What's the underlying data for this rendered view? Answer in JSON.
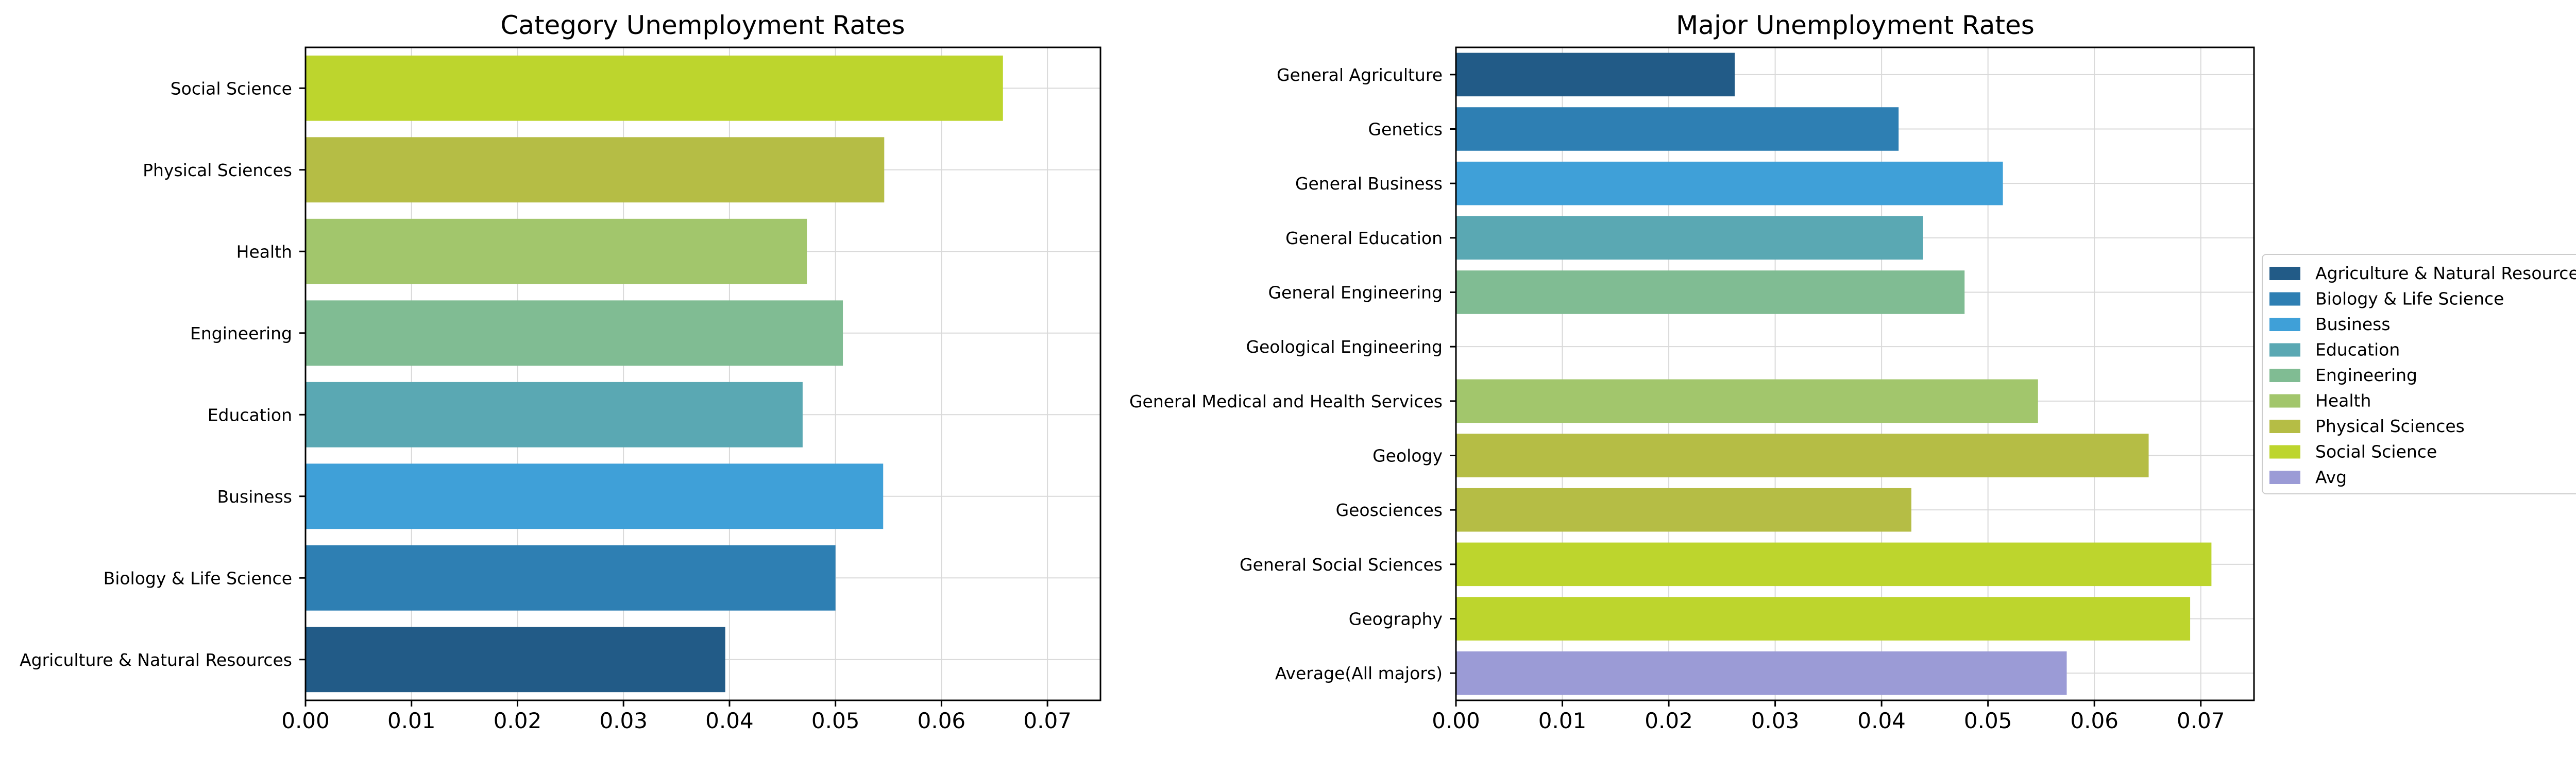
{
  "chart_data": [
    {
      "type": "bar",
      "orientation": "horizontal",
      "title": "Category Unemployment Rates",
      "xlabel": "",
      "ylabel": "",
      "xlim": [
        0,
        0.075
      ],
      "xticks": [
        "0.00",
        "0.01",
        "0.02",
        "0.03",
        "0.04",
        "0.05",
        "0.06",
        "0.07"
      ],
      "grid": true,
      "categories": [
        "Agriculture & Natural Resources",
        "Biology & Life Science",
        "Business",
        "Education",
        "Engineering",
        "Health",
        "Physical Sciences",
        "Social Science"
      ],
      "values": [
        0.0396,
        0.05,
        0.0545,
        0.0469,
        0.0507,
        0.0473,
        0.0546,
        0.0658
      ],
      "colors": [
        "#225b87",
        "#2e7fb3",
        "#3fa0d8",
        "#5aa8b3",
        "#80bc93",
        "#a2c66c",
        "#b5bd45",
        "#bdd52d"
      ]
    },
    {
      "type": "bar",
      "orientation": "horizontal",
      "title": "Major Unemployment Rates",
      "xlabel": "",
      "ylabel": "",
      "xlim": [
        0,
        0.075
      ],
      "xticks": [
        "0.00",
        "0.01",
        "0.02",
        "0.03",
        "0.04",
        "0.05",
        "0.06",
        "0.07"
      ],
      "grid": true,
      "legend_position": "right",
      "categories": [
        "Average(All majors)",
        "Geography",
        "General Social Sciences",
        "Geosciences",
        "Geology",
        "General Medical and Health Services",
        "Geological Engineering",
        "General Engineering",
        "General Education",
        "General Business",
        "Genetics",
        "General Agriculture"
      ],
      "values": [
        0.0574,
        0.069,
        0.071,
        0.0428,
        0.0651,
        0.0547,
        0.0,
        0.0478,
        0.0439,
        0.0514,
        0.0416,
        0.0262
      ],
      "groups": [
        "Avg",
        "Social Science",
        "Social Science",
        "Physical Sciences",
        "Physical Sciences",
        "Health",
        "Engineering",
        "Engineering",
        "Education",
        "Business",
        "Biology & Life Science",
        "Agriculture & Natural Resources"
      ],
      "legend": [
        {
          "label": "Agriculture & Natural Resources",
          "color": "#225b87"
        },
        {
          "label": "Biology & Life Science",
          "color": "#2e7fb3"
        },
        {
          "label": "Business",
          "color": "#3fa0d8"
        },
        {
          "label": "Education",
          "color": "#5aa8b3"
        },
        {
          "label": "Engineering",
          "color": "#80bc93"
        },
        {
          "label": "Health",
          "color": "#a2c66c"
        },
        {
          "label": "Physical Sciences",
          "color": "#b5bd45"
        },
        {
          "label": "Social Science",
          "color": "#bdd52d"
        },
        {
          "label": "Avg",
          "color": "#9b9bd6"
        }
      ]
    }
  ]
}
